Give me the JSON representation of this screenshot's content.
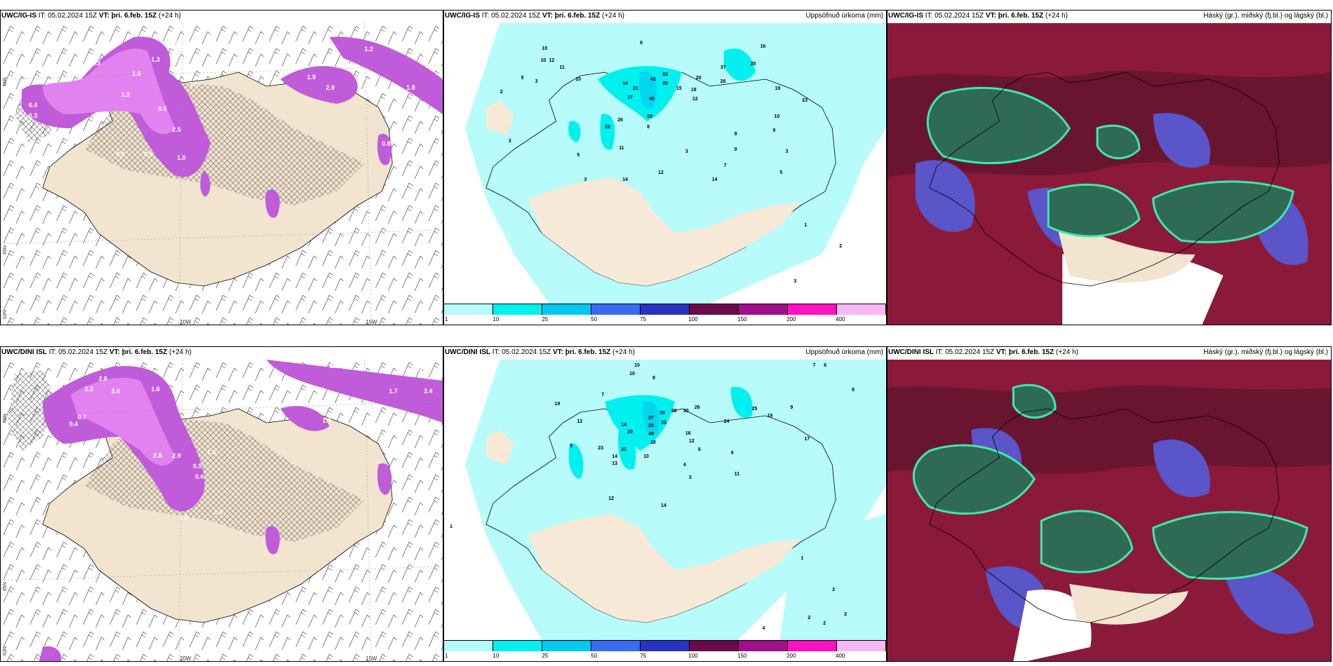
{
  "colors": {
    "land": "#f6e9d7",
    "precip_light": "#b7fbfb",
    "precip_mid": "#00f0f0",
    "snow_magenta": "#cc66e6",
    "snow_dark": "#8a4a90",
    "cloud_red": "#8b1a3a",
    "cloud_blue": "#5a55c8",
    "cloud_green": "#2f6a55"
  },
  "legend": {
    "colors": [
      "#b7fbfb",
      "#00f0f0",
      "#00c8f0",
      "#3a6af0",
      "#2a32c0",
      "#6a0a4a",
      "#a0108a",
      "#ff10c0",
      "#f5b8f5"
    ],
    "ticks": [
      "1",
      "10",
      "25",
      "50",
      "75",
      "100",
      "150",
      "200",
      "400"
    ]
  },
  "rows": [
    {
      "panels": [
        {
          "model": "UWC/IG-IS",
          "it_label": "IT:",
          "it_value": "05.02.2024 15Z",
          "vt_label": "VT:",
          "vt_value": "þri. 6.feb. 15Z",
          "lead": "(+24 h)",
          "right_title": "",
          "lat_labels": [
            "66N",
            "65N",
            "63N"
          ],
          "lon_labels": [
            "20W",
            "15W"
          ],
          "snow_values": [
            "0.3",
            "1.3",
            "0.6",
            "0.4",
            "2.3",
            "1.6",
            "1.3",
            "1.9",
            "1.2",
            "0.9",
            "2.9",
            "1.8",
            "0.5",
            "2.5",
            "1.0",
            "0.4",
            "0.3",
            "1.5",
            "0.5",
            "0.6",
            "0.8"
          ]
        },
        {
          "model": "UWC/IG-IS",
          "it_label": "IT:",
          "it_value": "05.02.2024 15Z",
          "vt_label": "VT:",
          "vt_value": "þri. 6.feb. 15Z",
          "lead": "(+24 h)",
          "right_title": "Uppsöfnuð úrkoma (mm)",
          "precip_values": [
            "6",
            "10",
            "10",
            "12",
            "11",
            "10",
            "2",
            "5",
            "3",
            "14",
            "21",
            "17",
            "33",
            "30",
            "42",
            "20",
            "16",
            "25",
            "37",
            "26",
            "29",
            "26",
            "22",
            "19",
            "11",
            "8",
            "9",
            "10",
            "12",
            "48",
            "15",
            "18",
            "23",
            "3",
            "5",
            "3",
            "14",
            "12",
            "14",
            "3",
            "9",
            "9",
            "3",
            "7",
            "5",
            "1",
            "2",
            "3"
          ]
        },
        {
          "model": "UWC/IG-IS",
          "it_label": "IT:",
          "it_value": "05.02.2024 15Z",
          "vt_label": "VT:",
          "vt_value": "þri. 6.feb. 15Z",
          "lead": "(+24 h)",
          "right_title": "Háský (gr.), miðský (fj.bl.) og lágský (bl.)"
        }
      ]
    },
    {
      "panels": [
        {
          "model": "UWC/DINI ISL",
          "it_label": "IT:",
          "it_value": "05.02.2024 15Z",
          "vt_label": "VT:",
          "vt_value": "þri. 6.feb. 15Z",
          "lead": "(+24 h)",
          "right_title": "",
          "lat_labels": [
            "66N",
            "65N",
            "63N"
          ],
          "lon_labels": [
            "20W",
            "15W"
          ],
          "snow_values": [
            "2.6",
            "4.4",
            "1.4",
            "0.6",
            "2.2",
            "3.0",
            "1.6",
            "1.7",
            "2.4",
            "1.6",
            "2.8",
            "2.9",
            "0.5",
            "0.7",
            "0.4",
            "0.6",
            "1.4",
            "1.8",
            "0.5",
            "0.6",
            "1.5"
          ]
        },
        {
          "model": "UWC/DINI ISL",
          "it_label": "IT:",
          "it_value": "05.02.2024 15Z",
          "vt_label": "VT:",
          "vt_value": "þri. 6.feb. 15Z",
          "lead": "(+24 h)",
          "right_title": "Uppsöfnuð úrkoma (mm)",
          "precip_values": [
            "10",
            "10",
            "8",
            "7",
            "19",
            "12",
            "14",
            "37",
            "38",
            "28",
            "30",
            "26",
            "20",
            "49",
            "33",
            "29",
            "25",
            "31",
            "24",
            "14",
            "16",
            "12",
            "23",
            "18",
            "13",
            "10",
            "12",
            "14",
            "9",
            "11",
            "6",
            "4",
            "3",
            "5",
            "17",
            "19",
            "1",
            "2",
            "2",
            "2",
            "2",
            "4",
            "1",
            "9",
            "7",
            "6",
            "8"
          ]
        },
        {
          "model": "UWC/DINI ISL",
          "it_label": "IT:",
          "it_value": "05.02.2024 15Z",
          "vt_label": "VT:",
          "vt_value": "þri. 6.feb. 15Z",
          "lead": "(+24 h)",
          "right_title": "Háský (gr.), miðský (fj.bl.) og lágský (bl.)"
        }
      ]
    }
  ]
}
